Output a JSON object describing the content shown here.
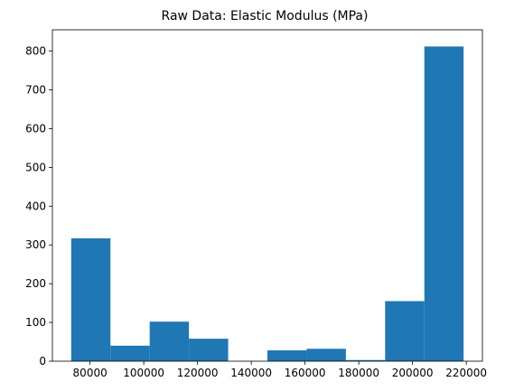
{
  "chart_data": {
    "type": "bar",
    "title": "Raw Data: Elastic Modulus (MPa)",
    "xlabel": "",
    "ylabel": "",
    "xlim": [
      66000,
      226000
    ],
    "ylim": [
      0,
      855
    ],
    "bin_edges": [
      73000,
      87600,
      102200,
      116800,
      131400,
      146000,
      160600,
      175200,
      189800,
      204400,
      219000
    ],
    "values": [
      317,
      40,
      102,
      58,
      0,
      28,
      32,
      3,
      155,
      812
    ],
    "x_ticks": [
      80000,
      100000,
      120000,
      140000,
      160000,
      180000,
      200000,
      220000
    ],
    "x_tick_labels": [
      "80000",
      "100000",
      "120000",
      "140000",
      "160000",
      "180000",
      "200000",
      "220000"
    ],
    "y_ticks": [
      0,
      100,
      200,
      300,
      400,
      500,
      600,
      700,
      800
    ],
    "y_tick_labels": [
      "0",
      "100",
      "200",
      "300",
      "400",
      "500",
      "600",
      "700",
      "800"
    ],
    "grid": false,
    "bar_color": "#1f77b4"
  }
}
